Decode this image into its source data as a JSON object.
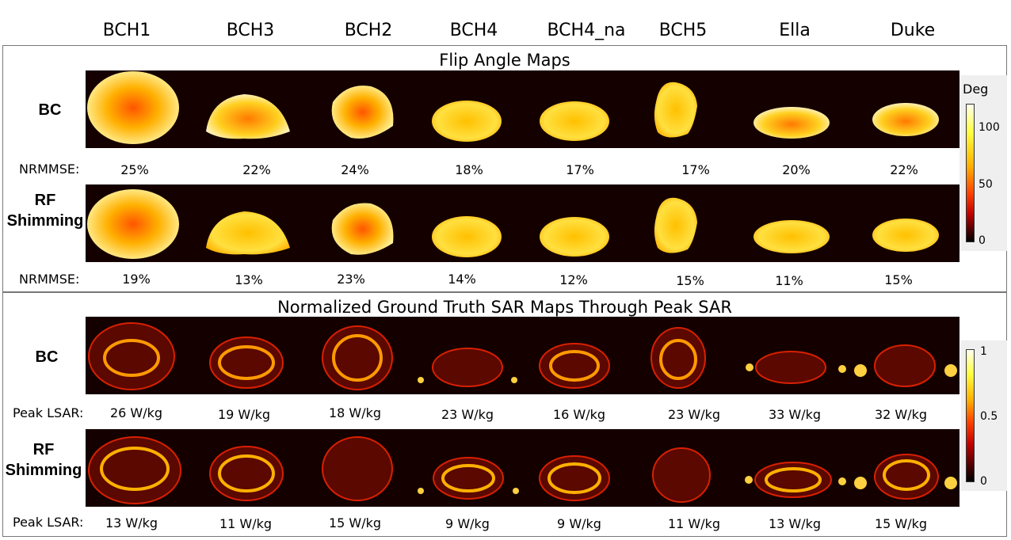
{
  "columns": [
    "BCH1",
    "BCH3",
    "BCH2",
    "BCH4",
    "BCH4_na",
    "BCH5",
    "Ella",
    "Duke"
  ],
  "top_panel": {
    "title": "Flip Angle Maps",
    "row1_label": "BC",
    "row2_label_line1": "RF",
    "row2_label_line2": "Shimming",
    "metric_label": "NRMMSE:",
    "bc_values": [
      "25%",
      "22%",
      "24%",
      "18%",
      "17%",
      "17%",
      "20%",
      "22%"
    ],
    "rf_values": [
      "19%",
      "13%",
      "23%",
      "14%",
      "12%",
      "15%",
      "11%",
      "15%"
    ],
    "colorbar": {
      "title": "Deg",
      "ticks": [
        "100",
        "50",
        "0"
      ]
    }
  },
  "bottom_panel": {
    "title": "Normalized Ground Truth SAR Maps Through Peak SAR",
    "row1_label": "BC",
    "row2_label_line1": "RF",
    "row2_label_line2": "Shimming",
    "metric_label": "Peak LSAR:",
    "bc_values": [
      "26 W/kg",
      "19 W/kg",
      "18 W/kg",
      "23 W/kg",
      "16 W/kg",
      "23 W/kg",
      "33 W/kg",
      "32 W/kg"
    ],
    "rf_values": [
      "13 W/kg",
      "11 W/kg",
      "15 W/kg",
      "9 W/kg",
      "9 W/kg",
      "11 W/kg",
      "13 W/kg",
      "15 W/kg"
    ],
    "colorbar": {
      "ticks": [
        "1",
        "0.5",
        "0"
      ]
    }
  }
}
